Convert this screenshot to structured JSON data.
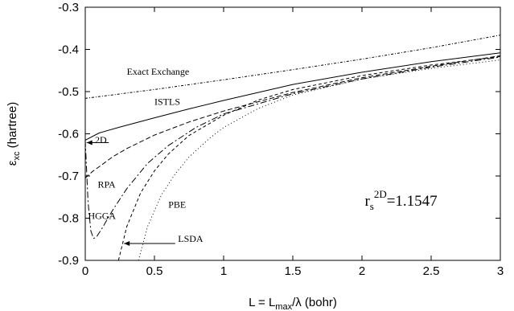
{
  "chart_data": {
    "type": "line",
    "title": "",
    "xlabel": "L = L",
    "xlabel_sub": "max",
    "xlabel_rest": "/λ (bohr)",
    "ylabel": "ε",
    "ylabel_sub": "xc",
    "ylabel_rest": " (hartree)",
    "xlim": [
      0,
      3
    ],
    "ylim": [
      -0.9,
      -0.3
    ],
    "xticks": [
      0,
      0.5,
      1,
      1.5,
      2,
      2.5,
      3
    ],
    "xtick_labels": [
      "0",
      "0.5",
      "1",
      "1.5",
      "2",
      "2.5",
      "3"
    ],
    "yticks": [
      -0.9,
      -0.8,
      -0.7,
      -0.6,
      -0.5,
      -0.4,
      -0.3
    ],
    "ytick_labels": [
      "-0.9",
      "-0.8",
      "-0.7",
      "-0.6",
      "-0.5",
      "-0.4",
      "-0.3"
    ],
    "grid": false,
    "series": [
      {
        "name": "Exact Exchange",
        "dash": "3,2,1,2",
        "x": [
          0,
          0.5,
          1,
          1.5,
          2,
          2.5,
          3
        ],
        "y": [
          -0.516,
          -0.495,
          -0.472,
          -0.448,
          -0.423,
          -0.396,
          -0.366
        ]
      },
      {
        "name": "ISTLS",
        "dash": "",
        "x": [
          0,
          0.1,
          0.25,
          0.5,
          0.75,
          1,
          1.5,
          2,
          2.5,
          3
        ],
        "y": [
          -0.615,
          -0.598,
          -0.584,
          -0.562,
          -0.541,
          -0.521,
          -0.483,
          -0.454,
          -0.429,
          -0.408
        ]
      },
      {
        "name": "RPA",
        "dash": "6,3",
        "x": [
          0,
          0.05,
          0.1,
          0.2,
          0.3,
          0.5,
          0.75,
          1,
          1.5,
          2,
          2.5,
          3
        ],
        "y": [
          -0.705,
          -0.69,
          -0.678,
          -0.654,
          -0.635,
          -0.603,
          -0.572,
          -0.546,
          -0.502,
          -0.467,
          -0.44,
          -0.415
        ]
      },
      {
        "name": "HGGA",
        "dash": "8,3,2,3",
        "x": [
          0,
          0.02,
          0.04,
          0.06,
          0.08,
          0.12,
          0.2,
          0.3,
          0.45,
          0.6,
          0.8,
          1,
          1.5,
          2,
          2.5,
          3
        ],
        "y": [
          -0.615,
          -0.76,
          -0.83,
          -0.848,
          -0.845,
          -0.825,
          -0.78,
          -0.73,
          -0.67,
          -0.628,
          -0.585,
          -0.553,
          -0.505,
          -0.47,
          -0.442,
          -0.418
        ]
      },
      {
        "name": "LSDA",
        "dash": "4,3",
        "x": [
          0.24,
          0.3,
          0.4,
          0.5,
          0.6,
          0.75,
          1,
          1.25,
          1.5,
          2,
          2.5,
          3
        ],
        "y": [
          -0.9,
          -0.82,
          -0.74,
          -0.688,
          -0.648,
          -0.604,
          -0.556,
          -0.52,
          -0.495,
          -0.462,
          -0.437,
          -0.417
        ]
      },
      {
        "name": "PBE",
        "dash": "1,3",
        "x": [
          0.385,
          0.45,
          0.55,
          0.65,
          0.75,
          0.9,
          1,
          1.25,
          1.5,
          2,
          2.5,
          3
        ],
        "y": [
          -0.9,
          -0.82,
          -0.745,
          -0.695,
          -0.655,
          -0.61,
          -0.585,
          -0.54,
          -0.508,
          -0.47,
          -0.445,
          -0.425
        ]
      }
    ],
    "annotations": [
      {
        "key": "exact",
        "text": "Exact Exchange",
        "x": 0.3,
        "y": -0.46
      },
      {
        "key": "istls",
        "text": "ISTLS",
        "x": 0.5,
        "y": -0.531
      },
      {
        "key": "d2",
        "text": "2D",
        "x": 0.07,
        "y": -0.622
      },
      {
        "key": "rpa",
        "text": "RPA",
        "x": 0.09,
        "y": -0.728
      },
      {
        "key": "hgga",
        "text": "HGGA",
        "x": 0.02,
        "y": -0.802
      },
      {
        "key": "pbe",
        "text": "PBE",
        "x": 0.6,
        "y": -0.775
      },
      {
        "key": "lsda",
        "text": "LSDA",
        "x": 0.67,
        "y": -0.856
      }
    ],
    "arrows": [
      {
        "key": "arrow-2d",
        "from": [
          0.17,
          -0.621
        ],
        "to": [
          0.01,
          -0.621
        ]
      },
      {
        "key": "arrow-lsda",
        "from": [
          0.65,
          -0.86
        ],
        "to": [
          0.28,
          -0.86
        ]
      }
    ],
    "rs_label": {
      "base": "r",
      "sub": "s",
      "sup": "2D",
      "rest": "=1.1547",
      "x": 2.02,
      "y": -0.77
    }
  }
}
